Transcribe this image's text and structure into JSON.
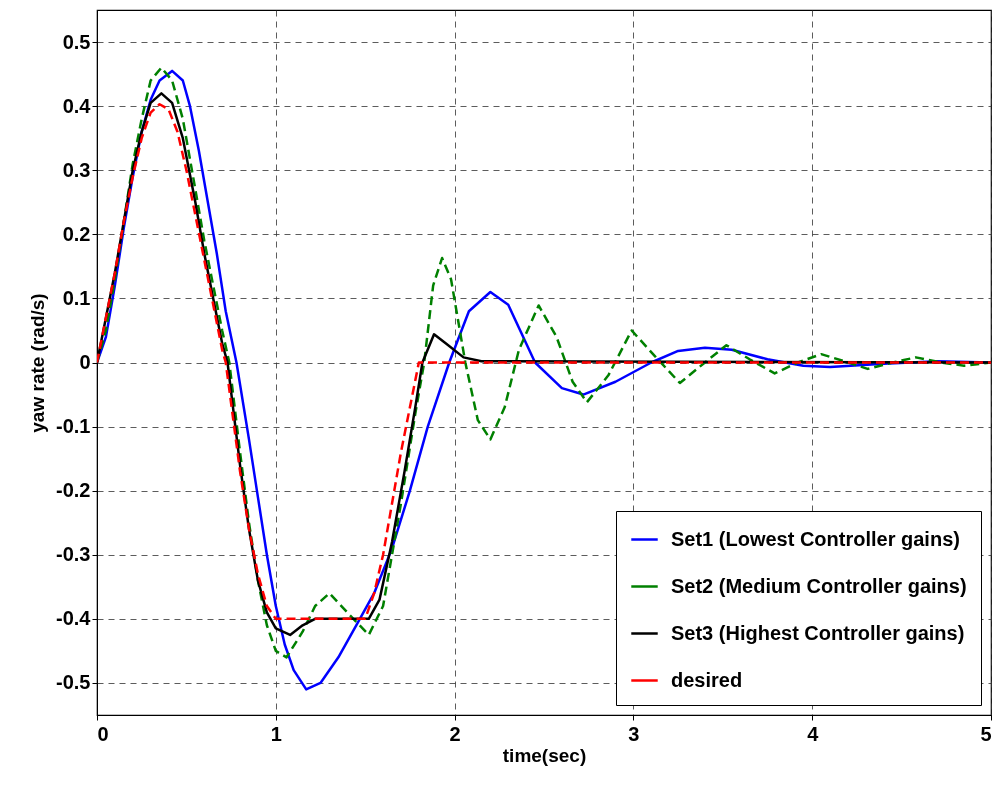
{
  "chart_data": {
    "type": "line",
    "xlabel": "time(sec)",
    "ylabel": "yaw rate (rad/s)",
    "xlim": [
      0,
      5
    ],
    "xticks": [
      0,
      1,
      2,
      3,
      4,
      5
    ],
    "ylim": [
      -0.55,
      0.55
    ],
    "yticks": [
      -0.5,
      -0.4,
      -0.3,
      -0.2,
      -0.1,
      0,
      0.1,
      0.2,
      0.3,
      0.4,
      0.5
    ],
    "grid": true,
    "legend": "bottom right",
    "series": [
      {
        "name": "Set1 (Lowest Controller gains)",
        "color": "#0000ff",
        "line_style": "solid",
        "x": [
          0,
          0.05,
          0.1,
          0.15,
          0.2,
          0.25,
          0.3,
          0.35,
          0.42,
          0.48,
          0.52,
          0.57,
          0.62,
          0.67,
          0.72,
          0.78,
          0.85,
          0.9,
          0.95,
          1.0,
          1.05,
          1.1,
          1.17,
          1.25,
          1.35,
          1.45,
          1.55,
          1.65,
          1.75,
          1.85,
          1.97,
          2.08,
          2.2,
          2.3,
          2.45,
          2.6,
          2.72,
          2.9,
          3.1,
          3.25,
          3.4,
          3.55,
          3.75,
          3.95,
          4.1,
          4.4,
          4.7,
          5
        ],
        "values": [
          0,
          0.04,
          0.12,
          0.21,
          0.29,
          0.36,
          0.41,
          0.44,
          0.455,
          0.44,
          0.4,
          0.33,
          0.25,
          0.17,
          0.08,
          0,
          -0.12,
          -0.21,
          -0.3,
          -0.38,
          -0.44,
          -0.48,
          -0.51,
          -0.5,
          -0.46,
          -0.41,
          -0.36,
          -0.29,
          -0.2,
          -0.1,
          0,
          0.08,
          0.11,
          0.09,
          0,
          -0.04,
          -0.05,
          -0.03,
          0,
          0.018,
          0.023,
          0.02,
          0.005,
          -0.005,
          -0.007,
          -0.002,
          0.002,
          0
        ]
      },
      {
        "name": "Set2 (Medium Controller gains)",
        "color": "#008000",
        "line_style": "dashed",
        "x": [
          0,
          0.05,
          0.1,
          0.15,
          0.2,
          0.25,
          0.3,
          0.36,
          0.42,
          0.48,
          0.55,
          0.6,
          0.65,
          0.7,
          0.74,
          0.8,
          0.85,
          0.9,
          0.95,
          1.0,
          1.06,
          1.15,
          1.22,
          1.3,
          1.4,
          1.52,
          1.6,
          1.7,
          1.78,
          1.83,
          1.88,
          1.93,
          1.98,
          2.06,
          2.13,
          2.2,
          2.28,
          2.36,
          2.47,
          2.57,
          2.66,
          2.74,
          2.86,
          2.99,
          3.12,
          3.26,
          3.4,
          3.52,
          3.65,
          3.79,
          3.92,
          4.05,
          4.18,
          4.31,
          4.45,
          4.58,
          4.72,
          4.85,
          5
        ],
        "values": [
          0,
          0.05,
          0.13,
          0.22,
          0.31,
          0.38,
          0.44,
          0.46,
          0.44,
          0.38,
          0.27,
          0.19,
          0.12,
          0.05,
          0,
          -0.14,
          -0.25,
          -0.34,
          -0.41,
          -0.45,
          -0.46,
          -0.42,
          -0.38,
          -0.36,
          -0.39,
          -0.425,
          -0.38,
          -0.22,
          -0.08,
          0,
          0.12,
          0.163,
          0.13,
          0,
          -0.09,
          -0.12,
          -0.07,
          0.02,
          0.089,
          0.04,
          -0.03,
          -0.062,
          -0.02,
          0.05,
          0.01,
          -0.032,
          0,
          0.027,
          0.005,
          -0.017,
          0,
          0.013,
          0.002,
          -0.01,
          0,
          0.008,
          0,
          -0.005,
          0
        ]
      },
      {
        "name": "Set3 (Highest Controller gains)",
        "color": "#000000",
        "line_style": "solid",
        "x": [
          0,
          0.05,
          0.1,
          0.15,
          0.2,
          0.25,
          0.3,
          0.36,
          0.42,
          0.48,
          0.55,
          0.6,
          0.65,
          0.7,
          0.73,
          0.8,
          0.85,
          0.9,
          0.95,
          1.0,
          1.08,
          1.15,
          1.22,
          1.52,
          1.58,
          1.65,
          1.72,
          1.78,
          1.82,
          1.885,
          1.95,
          2.05,
          2.15,
          5
        ],
        "values": [
          0,
          0.07,
          0.14,
          0.22,
          0.3,
          0.36,
          0.405,
          0.42,
          0.405,
          0.35,
          0.25,
          0.17,
          0.1,
          0.03,
          0,
          -0.16,
          -0.26,
          -0.34,
          -0.39,
          -0.415,
          -0.425,
          -0.41,
          -0.4,
          -0.4,
          -0.37,
          -0.28,
          -0.17,
          -0.07,
          0,
          0.044,
          0.03,
          0.008,
          0.002,
          0
        ]
      },
      {
        "name": "desired",
        "color": "#ff0000",
        "line_style": "dashed",
        "x": [
          0,
          0.05,
          0.1,
          0.15,
          0.2,
          0.25,
          0.3,
          0.35,
          0.4,
          0.45,
          0.5,
          0.55,
          0.6,
          0.65,
          0.7,
          0.72,
          0.8,
          0.85,
          0.9,
          0.95,
          1.0,
          1.5,
          1.55,
          1.6,
          1.65,
          1.7,
          1.75,
          1.8,
          5
        ],
        "values": [
          0,
          0.07,
          0.14,
          0.22,
          0.29,
          0.35,
          0.39,
          0.403,
          0.395,
          0.36,
          0.3,
          0.23,
          0.16,
          0.09,
          0.02,
          0,
          -0.17,
          -0.26,
          -0.33,
          -0.38,
          -0.4,
          -0.4,
          -0.36,
          -0.3,
          -0.22,
          -0.14,
          -0.07,
          0,
          0
        ]
      }
    ]
  }
}
